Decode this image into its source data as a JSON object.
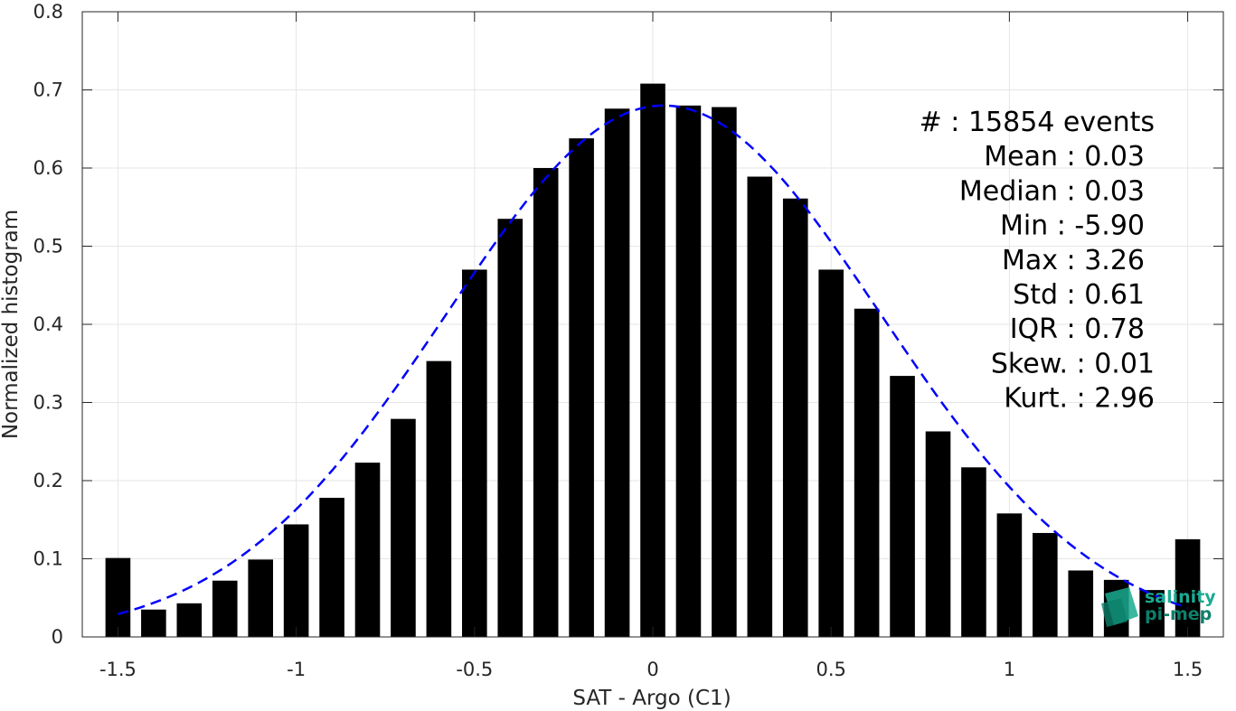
{
  "chart_data": {
    "type": "bar",
    "xlabel": "SAT - Argo (C1)",
    "ylabel": "Normalized histogram",
    "xlim": [
      -1.6,
      1.6
    ],
    "ylim": [
      0,
      0.8
    ],
    "grid": true,
    "x_ticks": [
      "-1.5",
      "-1",
      "-0.5",
      "0",
      "0.5",
      "1",
      "1.5"
    ],
    "x_tick_values": [
      -1.5,
      -1,
      -0.5,
      0,
      0.5,
      1,
      1.5
    ],
    "y_ticks": [
      "0",
      "0.1",
      "0.2",
      "0.3",
      "0.4",
      "0.5",
      "0.6",
      "0.7",
      "0.8"
    ],
    "y_tick_values": [
      0,
      0.1,
      0.2,
      0.3,
      0.4,
      0.5,
      0.6,
      0.7,
      0.8
    ],
    "bar_color": "#000000",
    "bars": {
      "x": [
        -1.5,
        -1.4,
        -1.3,
        -1.2,
        -1.1,
        -1.0,
        -0.9,
        -0.8,
        -0.7,
        -0.6,
        -0.5,
        -0.4,
        -0.3,
        -0.2,
        -0.1,
        0.0,
        0.1,
        0.2,
        0.3,
        0.4,
        0.5,
        0.6,
        0.7,
        0.8,
        0.9,
        1.0,
        1.1,
        1.2,
        1.3,
        1.4,
        1.5
      ],
      "values": [
        0.101,
        0.035,
        0.043,
        0.072,
        0.099,
        0.144,
        0.178,
        0.223,
        0.279,
        0.353,
        0.47,
        0.535,
        0.6,
        0.638,
        0.676,
        0.708,
        0.68,
        0.678,
        0.589,
        0.561,
        0.47,
        0.42,
        0.334,
        0.263,
        0.217,
        0.158,
        0.133,
        0.085,
        0.073,
        0.06,
        0.125
      ]
    },
    "fit_curve": {
      "type": "gaussian",
      "style": "dashed",
      "color": "#0000ff",
      "mean": 0.03,
      "std": 0.61,
      "x_range": [
        -1.5,
        1.5
      ]
    },
    "stats": [
      "#  : 15854 events",
      "Mean : 0.03",
      "Median : 0.03",
      "Min : -5.90",
      "Max : 3.26",
      "Std : 0.61",
      "IQR : 0.78",
      "Skew. : 0.01",
      "Kurt. : 2.96"
    ]
  },
  "logo": {
    "line1": "salinity",
    "line2": "pi-mep",
    "color": "#1aaa8f"
  }
}
